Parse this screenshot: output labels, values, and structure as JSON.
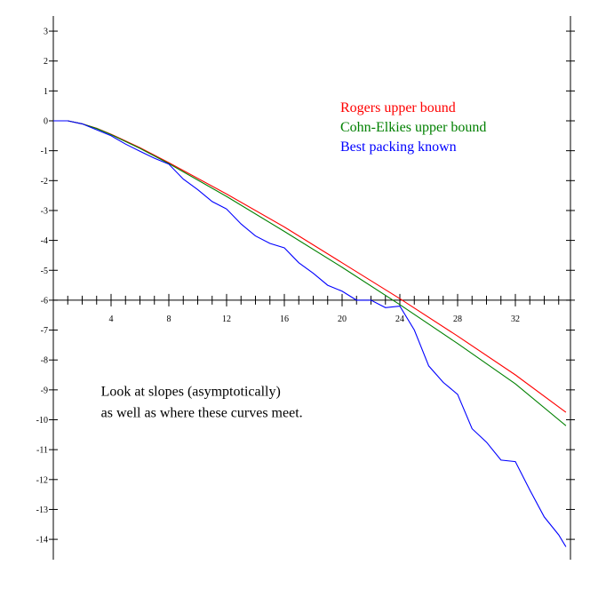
{
  "chart_data": {
    "type": "line",
    "title": "",
    "xlabel": "",
    "ylabel": "",
    "xlim": [
      0,
      35.5
    ],
    "ylim": [
      -14.6,
      3.3
    ],
    "grid": false,
    "legend_position": "top-right",
    "x_ticks": [
      {
        "value": 4,
        "label": "4"
      },
      {
        "value": 8,
        "label": "8"
      },
      {
        "value": 12,
        "label": "12"
      },
      {
        "value": 16,
        "label": "16"
      },
      {
        "value": 20,
        "label": "20"
      },
      {
        "value": 24,
        "label": "24"
      },
      {
        "value": 28,
        "label": "28"
      },
      {
        "value": 32,
        "label": "32"
      }
    ],
    "y_ticks": [
      {
        "value": 3,
        "label": "3"
      },
      {
        "value": 2,
        "label": "2"
      },
      {
        "value": 1,
        "label": "1"
      },
      {
        "value": 0,
        "label": "0"
      },
      {
        "value": -1,
        "label": "-1"
      },
      {
        "value": -2,
        "label": "-2"
      },
      {
        "value": -3,
        "label": "-3"
      },
      {
        "value": -4,
        "label": "-4"
      },
      {
        "value": -5,
        "label": "-5"
      },
      {
        "value": -6,
        "label": "-6"
      },
      {
        "value": -7,
        "label": "-7"
      },
      {
        "value": -8,
        "label": "-8"
      },
      {
        "value": -9,
        "label": "-9"
      },
      {
        "value": -10,
        "label": "-10"
      },
      {
        "value": -11,
        "label": "-11"
      },
      {
        "value": -12,
        "label": "-12"
      },
      {
        "value": -13,
        "label": "-13"
      },
      {
        "value": -14,
        "label": "-14"
      }
    ],
    "series": [
      {
        "name": "Rogers upper bound",
        "color": "#ff0000",
        "x": [
          0,
          1,
          2,
          3,
          4,
          6,
          8,
          12,
          16,
          20,
          24,
          28,
          32,
          35.5
        ],
        "y": [
          0,
          0,
          -0.1,
          -0.25,
          -0.45,
          -0.9,
          -1.4,
          -2.45,
          -3.55,
          -4.75,
          -5.95,
          -7.2,
          -8.5,
          -9.75
        ]
      },
      {
        "name": "Cohn-Elkies upper bound",
        "color": "#008000",
        "x": [
          0,
          1,
          2,
          3,
          4,
          6,
          8,
          12,
          16,
          20,
          24,
          28,
          32,
          35.5
        ],
        "y": [
          0,
          0,
          -0.1,
          -0.26,
          -0.46,
          -0.92,
          -1.43,
          -2.53,
          -3.7,
          -4.9,
          -6.15,
          -7.45,
          -8.8,
          -10.2
        ]
      },
      {
        "name": "Best packing known",
        "color": "#0000ff",
        "x": [
          0,
          1,
          2,
          3,
          4,
          5,
          6,
          7,
          8,
          9,
          10,
          11,
          12,
          13,
          14,
          15,
          16,
          17,
          18,
          19,
          20,
          21,
          22,
          23,
          24,
          25,
          26,
          27,
          28,
          29,
          30,
          31,
          32,
          33,
          34,
          35,
          35.5
        ],
        "y": [
          0,
          0,
          -0.1,
          -0.3,
          -0.5,
          -0.78,
          -1.02,
          -1.25,
          -1.45,
          -1.95,
          -2.3,
          -2.7,
          -2.95,
          -3.45,
          -3.85,
          -4.1,
          -4.25,
          -4.75,
          -5.1,
          -5.5,
          -5.7,
          -6.0,
          -6.0,
          -6.25,
          -6.2,
          -7.0,
          -8.2,
          -8.75,
          -9.15,
          -10.3,
          -10.75,
          -11.35,
          -11.4,
          -12.35,
          -13.25,
          -13.85,
          -14.25
        ]
      }
    ],
    "annotation": {
      "lines": [
        "Look at slopes (asymptotically)",
        "as well as where these curves meet."
      ],
      "x": 3.3,
      "y": -9.2
    }
  }
}
